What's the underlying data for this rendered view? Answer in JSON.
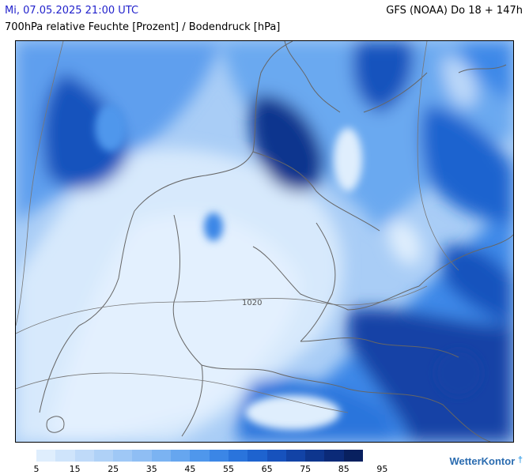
{
  "header": {
    "date": "Mi, 07.05.2025 21:00 UTC",
    "model": "GFS (NOAA) Do 18 + 147h",
    "title": "700hPa relative Feuchte [Prozent] / Bodendruck [hPa]"
  },
  "map": {
    "isobar_label": "1020"
  },
  "legend": {
    "colors": [
      "#dfeefd",
      "#cfe4fb",
      "#bfdaf9",
      "#afd1f7",
      "#9fc8f6",
      "#8fbef4",
      "#7bb3f2",
      "#66a6ef",
      "#4f97ec",
      "#3b86e6",
      "#2a74dc",
      "#1e63cf",
      "#1752bd",
      "#1243a6",
      "#0e368e",
      "#0b2a78",
      "#08205f"
    ],
    "labels": [
      "5",
      "15",
      "25",
      "35",
      "45",
      "55",
      "65",
      "75",
      "85",
      "95"
    ]
  },
  "branding": {
    "name": "WetterKontor"
  }
}
